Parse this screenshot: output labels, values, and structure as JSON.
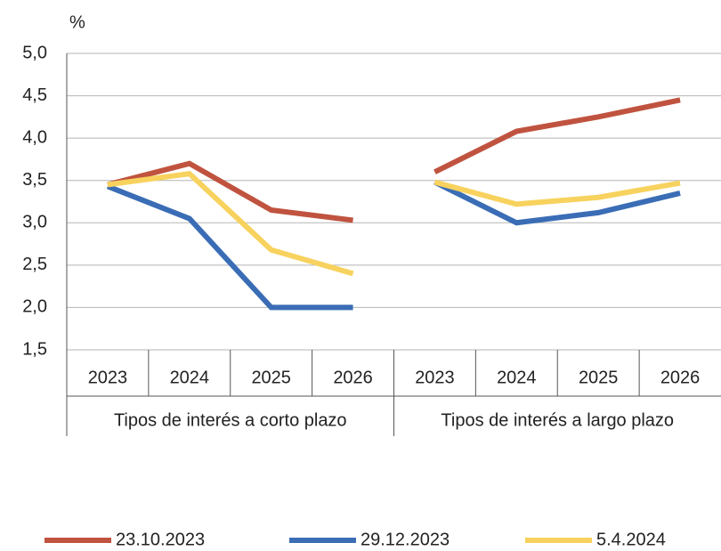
{
  "chart_data": {
    "type": "line",
    "y_unit": "%",
    "ylim": [
      1.5,
      5.0
    ],
    "yticks": [
      {
        "value": 1.5,
        "label": "1,5"
      },
      {
        "value": 2.0,
        "label": "2,0"
      },
      {
        "value": 2.5,
        "label": "2,5"
      },
      {
        "value": 3.0,
        "label": "3,0"
      },
      {
        "value": 3.5,
        "label": "3,5"
      },
      {
        "value": 4.0,
        "label": "4,0"
      },
      {
        "value": 4.5,
        "label": "4,5"
      },
      {
        "value": 5.0,
        "label": "5,0"
      }
    ],
    "grid": true,
    "series": [
      {
        "name": "23.10.2023",
        "color": "#c0533f"
      },
      {
        "name": "29.12.2023",
        "color": "#3a6db5"
      },
      {
        "name": "5.4.2024",
        "color": "#f8d25e"
      }
    ],
    "groups": [
      {
        "name": "Tipos de interés a corto plazo",
        "categories": [
          "2023",
          "2024",
          "2025",
          "2026"
        ],
        "series": [
          {
            "values": [
              3.45,
              3.7,
              3.15,
              3.03
            ]
          },
          {
            "values": [
              3.43,
              3.05,
              2.0,
              2.0
            ]
          },
          {
            "values": [
              3.45,
              3.58,
              2.68,
              2.4
            ]
          }
        ]
      },
      {
        "name": "Tipos de interés a largo plazo",
        "categories": [
          "2023",
          "2024",
          "2025",
          "2026"
        ],
        "series": [
          {
            "values": [
              3.6,
              4.08,
              4.25,
              4.45
            ]
          },
          {
            "values": [
              3.48,
              3.0,
              3.12,
              3.35
            ]
          },
          {
            "values": [
              3.48,
              3.22,
              3.3,
              3.47
            ]
          }
        ]
      }
    ]
  }
}
